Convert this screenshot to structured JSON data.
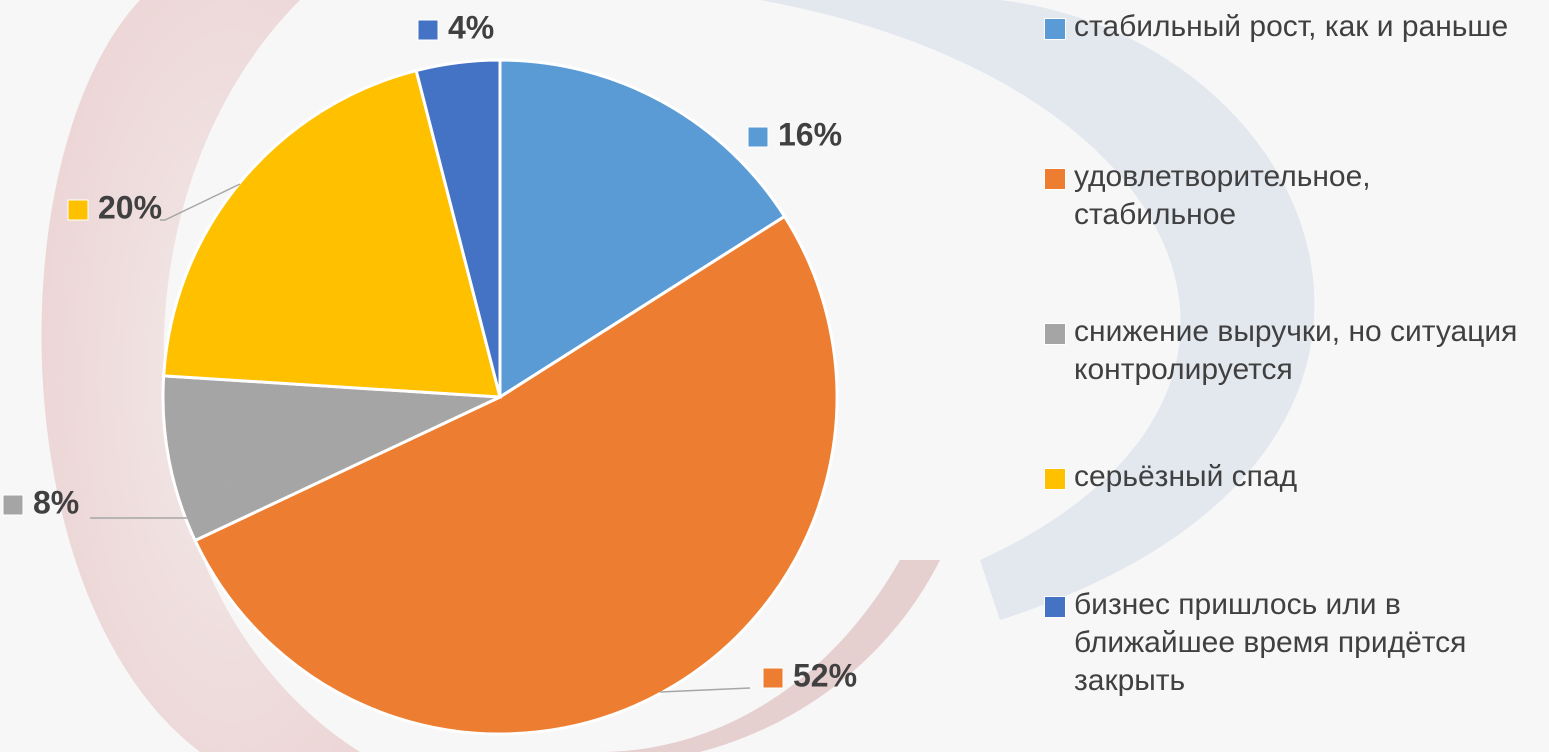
{
  "chart_data": {
    "type": "pie",
    "categories": [
      "стабильный рост, как и раньше",
      "удовлетворительное, стабильное",
      "снижение выручки, но ситуация контролируется",
      "серьёзный спад",
      "бизнес пришлось или в ближайшее время придётся закрыть"
    ],
    "values": [
      16,
      52,
      8,
      20,
      4
    ],
    "value_labels": [
      "16%",
      "52%",
      "8%",
      "20%",
      "4%"
    ],
    "colors": [
      "#5b9bd5",
      "#ed7d31",
      "#a5a5a5",
      "#ffc000",
      "#4472c4"
    ],
    "legend": "right"
  }
}
